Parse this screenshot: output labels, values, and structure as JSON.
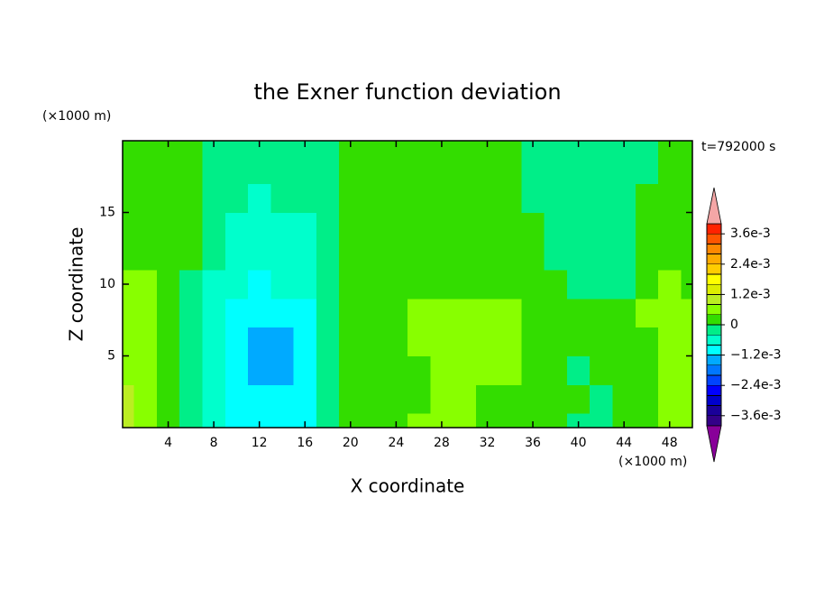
{
  "chart_data": {
    "type": "contour",
    "title": "the Exner function deviation",
    "xlabel": "X coordinate",
    "ylabel": "Z coordinate",
    "xunit": "(×1000 m)",
    "yunit": "(×1000 m)",
    "annotation": "t=792000 s",
    "xlim": [
      0,
      50
    ],
    "ylim": [
      0,
      20
    ],
    "xticks": [
      4,
      8,
      12,
      16,
      20,
      24,
      28,
      32,
      36,
      40,
      44,
      48
    ],
    "yticks": [
      5,
      10,
      15
    ],
    "x": [
      0,
      2,
      4,
      6,
      8,
      10,
      12,
      14,
      16,
      18,
      20,
      22,
      24,
      26,
      28,
      30,
      32,
      34,
      36,
      38,
      40,
      42,
      44,
      46,
      48,
      50
    ],
    "y": [
      0,
      2,
      4,
      6,
      8,
      10,
      12,
      14,
      16,
      18,
      20
    ],
    "z": [
      [
        0.0009,
        0.0005,
        0.0002,
        -0.0002,
        -0.0006,
        -0.001,
        -0.001,
        -0.001,
        -0.001,
        -0.0002,
        0.0002,
        0.0002,
        0.0002,
        0.0005,
        0.0005,
        0.0005,
        0.0002,
        0.0002,
        0.0002,
        0.0002,
        -0.0002,
        -0.0002,
        0.0002,
        0.0002,
        0.0005,
        0.0005
      ],
      [
        0.0009,
        0.0005,
        0.0002,
        -0.0002,
        -0.0006,
        -0.001,
        -0.001,
        -0.001,
        -0.001,
        -0.0002,
        0.0002,
        0.0002,
        0.0002,
        0.0002,
        0.0005,
        0.0005,
        0.0002,
        0.0002,
        0.0002,
        0.0002,
        0.0002,
        -0.0002,
        0.0002,
        0.0002,
        0.0005,
        0.0005
      ],
      [
        0.0005,
        0.0005,
        0.0002,
        -0.0002,
        -0.0006,
        -0.001,
        -0.0014,
        -0.0014,
        -0.001,
        -0.0002,
        0.0002,
        0.0002,
        0.0002,
        0.0002,
        0.0005,
        0.0005,
        0.0005,
        0.0005,
        0.0002,
        0.0002,
        -0.0002,
        0.0002,
        0.0002,
        0.0002,
        0.0005,
        0.0005
      ],
      [
        0.0005,
        0.0005,
        0.0002,
        -0.0002,
        -0.0006,
        -0.001,
        -0.0014,
        -0.0014,
        -0.001,
        -0.0002,
        0.0002,
        0.0002,
        0.0002,
        0.0005,
        0.0005,
        0.0005,
        0.0005,
        0.0005,
        0.0002,
        0.0002,
        0.0002,
        0.0002,
        0.0002,
        0.0002,
        0.0005,
        0.0005
      ],
      [
        0.0005,
        0.0005,
        0.0002,
        -0.0002,
        -0.0006,
        -0.001,
        -0.001,
        -0.001,
        -0.001,
        -0.0002,
        0.0002,
        0.0002,
        0.0002,
        0.0005,
        0.0005,
        0.0005,
        0.0005,
        0.0005,
        0.0002,
        0.0002,
        0.0002,
        0.0002,
        0.0002,
        0.0005,
        0.0005,
        0.0005
      ],
      [
        0.0005,
        0.0005,
        0.0002,
        -0.0002,
        -0.0006,
        -0.0006,
        -0.001,
        -0.0006,
        -0.0006,
        -0.0002,
        0.0002,
        0.0002,
        0.0002,
        0.0002,
        0.0002,
        0.0002,
        0.0002,
        0.0002,
        0.0002,
        0.0002,
        -0.0002,
        -0.0002,
        -0.0002,
        0.0002,
        0.0005,
        0.0002
      ],
      [
        0.0002,
        0.0002,
        0.0002,
        0.0002,
        -0.0002,
        -0.0006,
        -0.0006,
        -0.0006,
        -0.0006,
        -0.0002,
        0.0002,
        0.0002,
        0.0002,
        0.0002,
        0.0002,
        0.0002,
        0.0002,
        0.0002,
        0.0002,
        -0.0002,
        -0.0002,
        -0.0002,
        -0.0002,
        0.0002,
        0.0002,
        0.0002
      ],
      [
        0.0002,
        0.0002,
        0.0002,
        0.0002,
        -0.0002,
        -0.0006,
        -0.0006,
        -0.0006,
        -0.0006,
        -0.0002,
        0.0002,
        0.0002,
        0.0002,
        0.0002,
        0.0002,
        0.0002,
        0.0002,
        0.0002,
        0.0002,
        -0.0002,
        -0.0002,
        -0.0002,
        -0.0002,
        0.0002,
        0.0002,
        0.0002
      ],
      [
        0.0002,
        0.0002,
        0.0002,
        0.0002,
        -0.0002,
        -0.0002,
        -0.0006,
        -0.0002,
        -0.0002,
        -0.0002,
        0.0002,
        0.0002,
        0.0002,
        0.0002,
        0.0002,
        0.0002,
        0.0002,
        0.0002,
        -0.0002,
        -0.0002,
        -0.0002,
        -0.0002,
        -0.0002,
        0.0002,
        0.0002,
        0.0002
      ],
      [
        0.0002,
        0.0002,
        0.0002,
        0.0002,
        -0.0002,
        -0.0002,
        -0.0002,
        -0.0002,
        -0.0002,
        -0.0002,
        0.0002,
        0.0002,
        0.0002,
        0.0002,
        0.0002,
        0.0002,
        0.0002,
        0.0002,
        -0.0002,
        -0.0002,
        -0.0002,
        -0.0002,
        -0.0002,
        -0.0002,
        0.0002,
        0.0002
      ],
      [
        0.0002,
        0.0002,
        0.0002,
        0.0002,
        -0.0002,
        -0.0002,
        -0.0002,
        -0.0002,
        -0.0002,
        -0.0002,
        0.0002,
        0.0002,
        0.0002,
        0.0002,
        0.0002,
        0.0002,
        0.0002,
        0.0002,
        -0.0002,
        -0.0002,
        -0.0002,
        -0.0002,
        -0.0002,
        -0.0002,
        0.0002,
        0.0002
      ]
    ],
    "colorbar": {
      "levels": [
        -0.004,
        -0.0036,
        -0.0032,
        -0.0028,
        -0.0024,
        -0.002,
        -0.0016,
        -0.0012,
        -0.0008,
        -0.0004,
        0,
        0.0004,
        0.0008,
        0.0012,
        0.0016,
        0.002,
        0.0024,
        0.0028,
        0.0032,
        0.0036,
        0.004
      ],
      "colors": [
        "#880099",
        "#330088",
        "#1a0099",
        "#0000cc",
        "#0000ff",
        "#0044ff",
        "#0077ff",
        "#00aaff",
        "#00ffff",
        "#00ffcc",
        "#00ee88",
        "#33dd00",
        "#88ff00",
        "#bbee22",
        "#ddee00",
        "#ffff00",
        "#ffcc00",
        "#ffaa00",
        "#ff8800",
        "#ff5500",
        "#ff2200",
        "#f4a6a6"
      ],
      "ticks": [
        {
          "value": 0.0036,
          "label": "3.6e-3"
        },
        {
          "value": 0.0024,
          "label": "2.4e-3"
        },
        {
          "value": 0.0012,
          "label": "1.2e-3"
        },
        0,
        {
          "value": -0.0012,
          "label": "−1.2e-3"
        },
        {
          "value": -0.0024,
          "label": "−2.4e-3"
        },
        {
          "value": -0.0036,
          "label": "−3.6e-3"
        }
      ]
    }
  }
}
